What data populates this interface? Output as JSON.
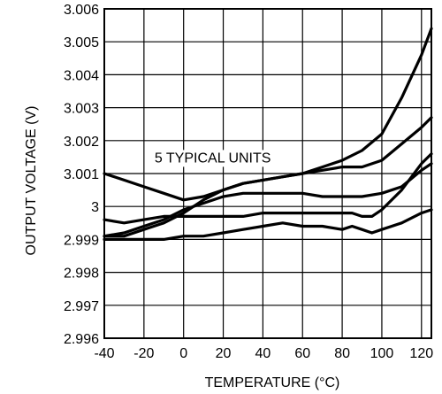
{
  "chart_data": {
    "type": "line",
    "xlabel": "TEMPERATURE (°C)",
    "ylabel": "OUTPUT VOLTAGE (V)",
    "xlim": [
      -40,
      125
    ],
    "ylim": [
      2.996,
      3.006
    ],
    "x_ticks": [
      "-40",
      "-20",
      "0",
      "20",
      "40",
      "60",
      "80",
      "100",
      "120"
    ],
    "y_ticks": [
      "2.996",
      "2.997",
      "2.998",
      "2.999",
      "3",
      "3.001",
      "3.002",
      "3.003",
      "3.004",
      "3.005",
      "3.006"
    ],
    "grid": true,
    "annotation": "5 TYPICAL UNITS",
    "series": [
      {
        "x": [
          -40,
          -30,
          -20,
          -10,
          0,
          10,
          20,
          30,
          40,
          50,
          60,
          70,
          80,
          90,
          100,
          110,
          120,
          125
        ],
        "y": [
          3.001,
          3.0008,
          3.0006,
          3.0004,
          3.0002,
          3.0003,
          3.0005,
          3.0007,
          3.0008,
          3.0009,
          3.001,
          3.0012,
          3.0014,
          3.0017,
          3.0022,
          3.0033,
          3.0046,
          3.0054
        ]
      },
      {
        "x": [
          -40,
          -30,
          -20,
          -10,
          0,
          10,
          20,
          30,
          40,
          50,
          60,
          70,
          80,
          90,
          100,
          110,
          120,
          125
        ],
        "y": [
          2.9991,
          2.9991,
          2.9993,
          2.9995,
          2.9998,
          3.0002,
          3.0005,
          3.0007,
          3.0008,
          3.0009,
          3.001,
          3.0011,
          3.0012,
          3.0012,
          3.0014,
          3.0019,
          3.0024,
          3.0027
        ]
      },
      {
        "x": [
          -40,
          -30,
          -20,
          -10,
          0,
          10,
          20,
          30,
          40,
          50,
          60,
          70,
          80,
          90,
          100,
          110,
          120,
          125
        ],
        "y": [
          2.9991,
          2.9992,
          2.9994,
          2.9996,
          2.9999,
          3.0001,
          3.0003,
          3.0004,
          3.0004,
          3.0004,
          3.0004,
          3.0003,
          3.0003,
          3.0003,
          3.0004,
          3.0006,
          3.0011,
          3.0013
        ]
      },
      {
        "x": [
          -40,
          -30,
          -20,
          -10,
          0,
          10,
          20,
          30,
          40,
          50,
          60,
          70,
          80,
          85,
          90,
          95,
          100,
          110,
          120,
          125
        ],
        "y": [
          2.9996,
          2.9995,
          2.9996,
          2.9997,
          2.9997,
          2.9997,
          2.9997,
          2.9997,
          2.9998,
          2.9998,
          2.9998,
          2.9998,
          2.9998,
          2.9998,
          2.9997,
          2.9997,
          2.9999,
          3.0005,
          3.0013,
          3.0016
        ]
      },
      {
        "x": [
          -40,
          -30,
          -20,
          -10,
          0,
          10,
          20,
          30,
          40,
          50,
          60,
          70,
          80,
          85,
          90,
          95,
          100,
          110,
          120,
          125
        ],
        "y": [
          2.999,
          2.999,
          2.999,
          2.999,
          2.9991,
          2.9991,
          2.9992,
          2.9993,
          2.9994,
          2.9995,
          2.9994,
          2.9994,
          2.9993,
          2.9994,
          2.9993,
          2.9992,
          2.9993,
          2.9995,
          2.9998,
          2.9999
        ]
      }
    ],
    "colors": {
      "line": "#000000",
      "grid": "#000000",
      "background": "#ffffff"
    }
  }
}
